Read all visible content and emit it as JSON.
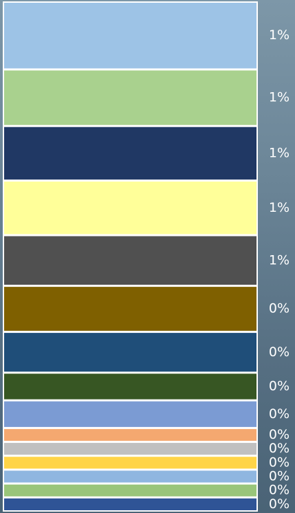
{
  "chart_data": {
    "type": "bar",
    "orientation": "stacked-vertical",
    "series": [
      {
        "color": "#9dc3e6",
        "label": "1%",
        "value": 1.0
      },
      {
        "color": "#a9d18e",
        "label": "1%",
        "value": 0.83
      },
      {
        "color": "#203864",
        "label": "1%",
        "value": 0.8
      },
      {
        "color": "#ffff99",
        "label": "1%",
        "value": 0.8
      },
      {
        "color": "#505050",
        "label": "1%",
        "value": 0.74
      },
      {
        "color": "#7f6000",
        "label": "0%",
        "value": 0.67
      },
      {
        "color": "#1f4e79",
        "label": "0%",
        "value": 0.59
      },
      {
        "color": "#375623",
        "label": "0%",
        "value": 0.39
      },
      {
        "color": "#7b9bd3",
        "label": "0%",
        "value": 0.39
      },
      {
        "color": "#f4a870",
        "label": "0%",
        "value": 0.18
      },
      {
        "color": "#c0c0c0",
        "label": "0%",
        "value": 0.18
      },
      {
        "color": "#ffd447",
        "label": "0%",
        "value": 0.18
      },
      {
        "color": "#8fb6e0",
        "label": "0%",
        "value": 0.18
      },
      {
        "color": "#99c57a",
        "label": "0%",
        "value": 0.18
      },
      {
        "color": "#2f5496",
        "label": "0%",
        "value": 0.18
      }
    ],
    "legend": "none",
    "grid": false
  }
}
